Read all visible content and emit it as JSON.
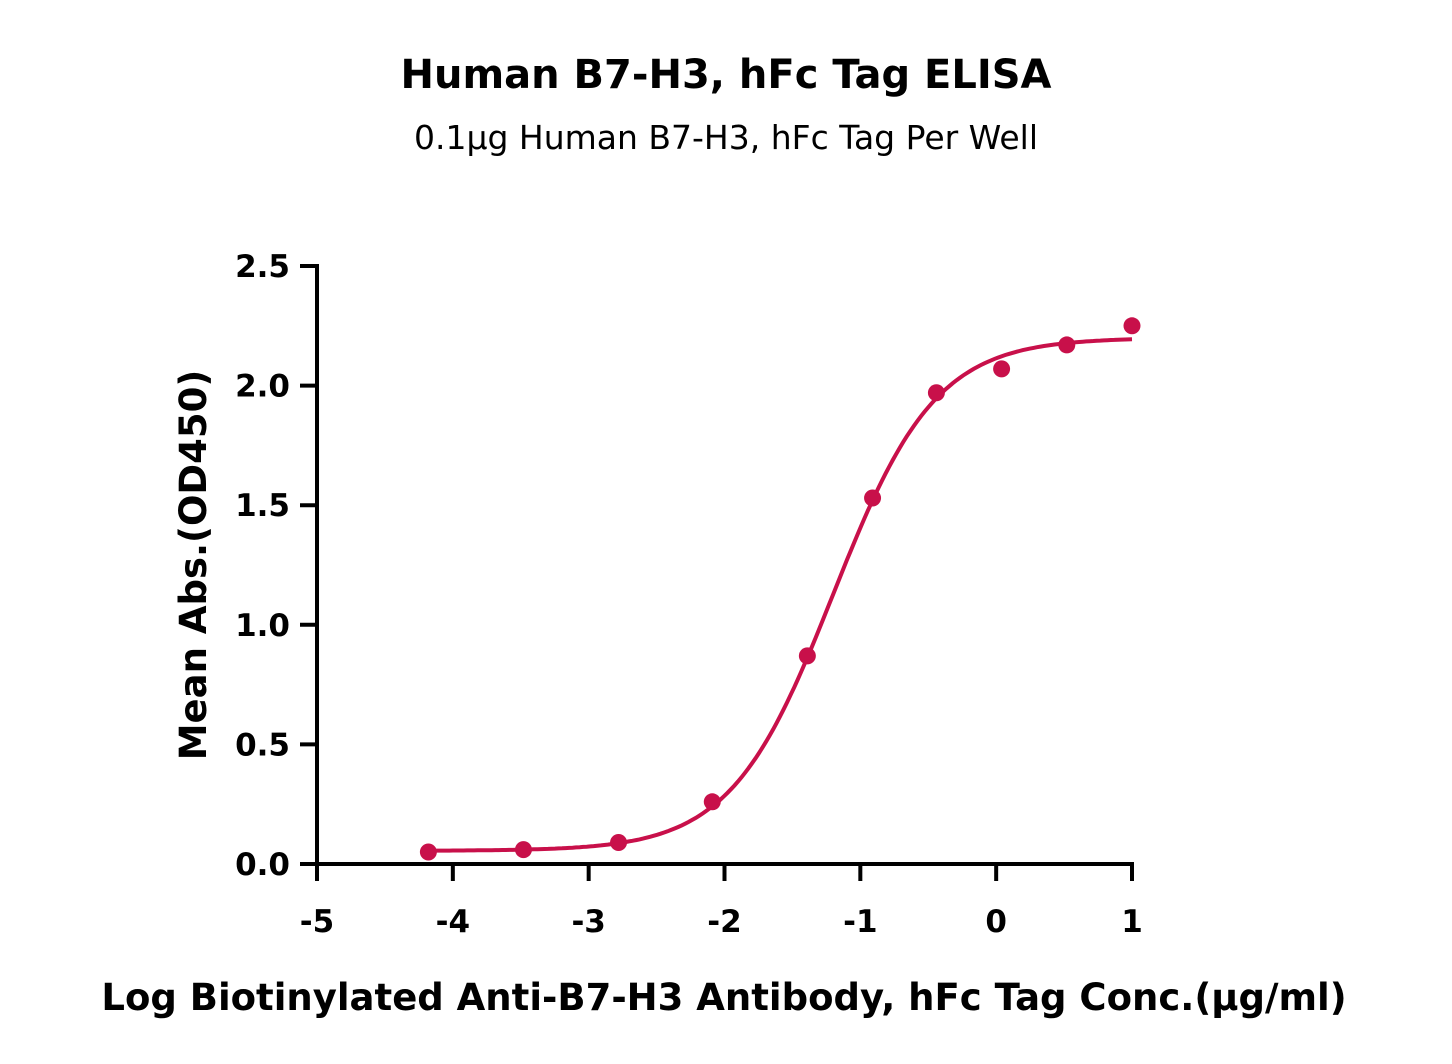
{
  "chart_data": {
    "type": "scatter",
    "title": "Human B7-H3, hFc Tag ELISA",
    "subtitle": "0.1μg Human B7-H3, hFc Tag Per Well",
    "xlabel": "Log Biotinylated Anti-B7-H3 Antibody, hFc Tag Conc.(μg/ml)",
    "ylabel": "Mean Abs.(OD450)",
    "xlim": [
      -5,
      1
    ],
    "ylim": [
      0,
      2.5
    ],
    "xticks": [
      -5,
      -4,
      -3,
      -2,
      -1,
      0,
      1
    ],
    "xtick_labels": [
      "-5",
      "-4",
      "-3",
      "-2",
      "-1",
      "0",
      "1"
    ],
    "yticks": [
      0,
      0.5,
      1,
      1.5,
      2,
      2.5
    ],
    "ytick_labels": [
      "0.0",
      "0.5",
      "1.0",
      "1.5",
      "2.0",
      "2.5"
    ],
    "grid": false,
    "color": "#c8104a",
    "series": [
      {
        "name": "Mean Abs.",
        "x": [
          -4.18,
          -3.48,
          -2.78,
          -2.09,
          -1.39,
          -0.91,
          -0.44,
          0.04,
          0.52,
          1.0
        ],
        "y": [
          0.05,
          0.06,
          0.09,
          0.26,
          0.87,
          1.53,
          1.97,
          2.07,
          2.17,
          2.25
        ]
      }
    ],
    "fit": {
      "model": "4PL",
      "bottom": 0.055,
      "top": 2.2,
      "logEC50": -1.2,
      "hill": 1.15
    }
  }
}
